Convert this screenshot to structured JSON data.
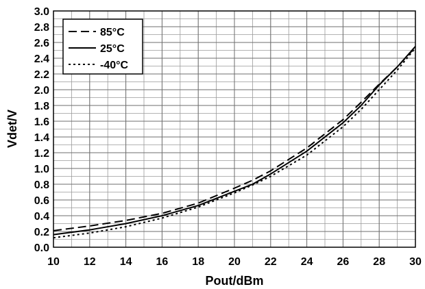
{
  "chart_data": {
    "type": "line",
    "title": "",
    "xlabel": "Pout/dBm",
    "ylabel": "Vdet/V",
    "xlim": [
      10,
      30
    ],
    "ylim": [
      0.0,
      3.0
    ],
    "x_major_ticks": [
      10,
      12,
      14,
      16,
      18,
      20,
      22,
      24,
      26,
      28,
      30
    ],
    "x_tick_labels": [
      "10",
      "12",
      "14",
      "16",
      "18",
      "20",
      "22",
      "24",
      "26",
      "28",
      "30"
    ],
    "y_major_ticks": [
      0.0,
      0.2,
      0.4,
      0.6,
      0.8,
      1.0,
      1.2,
      1.4,
      1.6,
      1.8,
      2.0,
      2.2,
      2.4,
      2.6,
      2.8,
      3.0
    ],
    "y_tick_labels": [
      "0.0",
      "0.2",
      "0.4",
      "0.6",
      "0.8",
      "1.0",
      "1.2",
      "1.4",
      "1.6",
      "1.8",
      "2.0",
      "2.2",
      "2.4",
      "2.6",
      "2.8",
      "3.0"
    ],
    "grid": true,
    "x_minor_step": 1,
    "y_minor_step": 0.1,
    "legend_position": "top-left",
    "series": [
      {
        "name": "85°C",
        "style": "dashed",
        "x": [
          10,
          12,
          14,
          16,
          18,
          20,
          21,
          22,
          24,
          26,
          27,
          28,
          29,
          30
        ],
        "y": [
          0.21,
          0.27,
          0.34,
          0.43,
          0.56,
          0.75,
          0.85,
          0.97,
          1.26,
          1.62,
          1.84,
          2.07,
          2.29,
          2.54
        ]
      },
      {
        "name": "25°C",
        "style": "solid",
        "x": [
          10,
          12,
          14,
          16,
          18,
          20,
          21,
          22,
          24,
          26,
          27,
          28,
          29,
          30
        ],
        "y": [
          0.16,
          0.22,
          0.3,
          0.4,
          0.53,
          0.71,
          0.8,
          0.93,
          1.22,
          1.58,
          1.8,
          2.06,
          2.29,
          2.55
        ]
      },
      {
        "name": "-40°C",
        "style": "dotted",
        "x": [
          10,
          12,
          14,
          16,
          18,
          20,
          21,
          22,
          24,
          26,
          27,
          28,
          29,
          30
        ],
        "y": [
          0.12,
          0.18,
          0.26,
          0.37,
          0.51,
          0.69,
          0.79,
          0.9,
          1.17,
          1.53,
          1.75,
          2.0,
          2.25,
          2.53
        ]
      }
    ]
  }
}
